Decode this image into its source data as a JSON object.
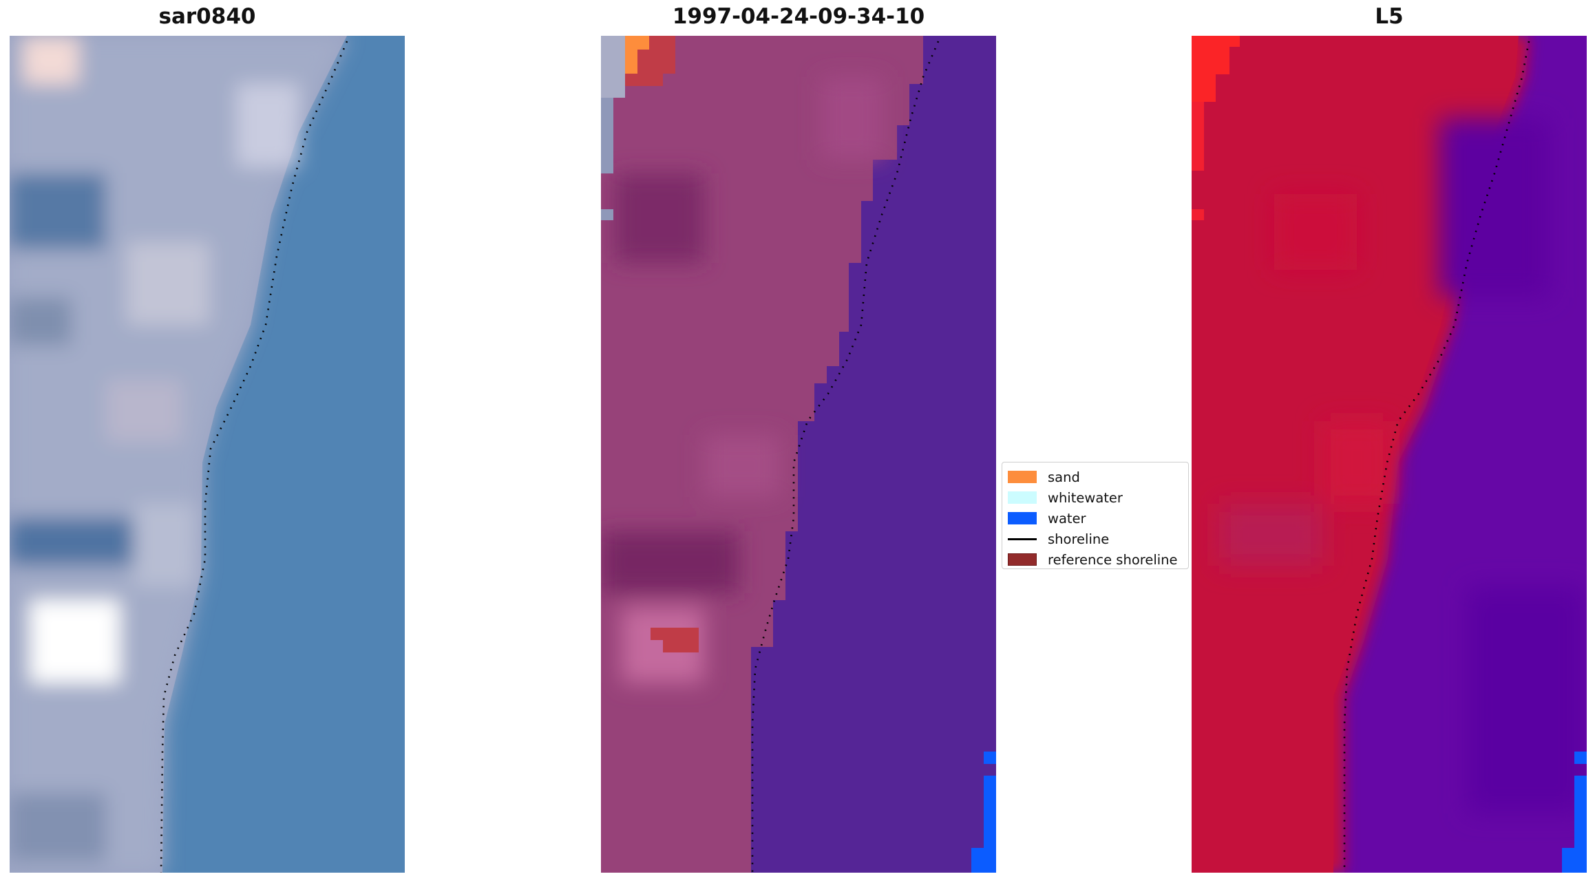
{
  "panels": [
    {
      "title": "sar0840"
    },
    {
      "title": "1997-04-24-09-34-10"
    },
    {
      "title": "L5"
    }
  ],
  "legend": {
    "items": [
      {
        "label": "sand",
        "color": "#fd8d3c",
        "kind": "patch"
      },
      {
        "label": "whitewater",
        "color": "#ccfcff",
        "kind": "patch"
      },
      {
        "label": "water",
        "color": "#0b5cff",
        "kind": "patch"
      },
      {
        "label": "shoreline",
        "color": "#000000",
        "kind": "line"
      },
      {
        "label": "reference shoreline",
        "color": "#922b2b",
        "kind": "patch",
        "edge": "#6e1a1a"
      }
    ]
  },
  "colors": {
    "sea_rgb": "#5184b4",
    "land_rgb": "#9aa3c3",
    "sea_class": "#552596",
    "land_class": "#974279",
    "sea_index": "#6607a6",
    "land_index": "#c5113c"
  }
}
